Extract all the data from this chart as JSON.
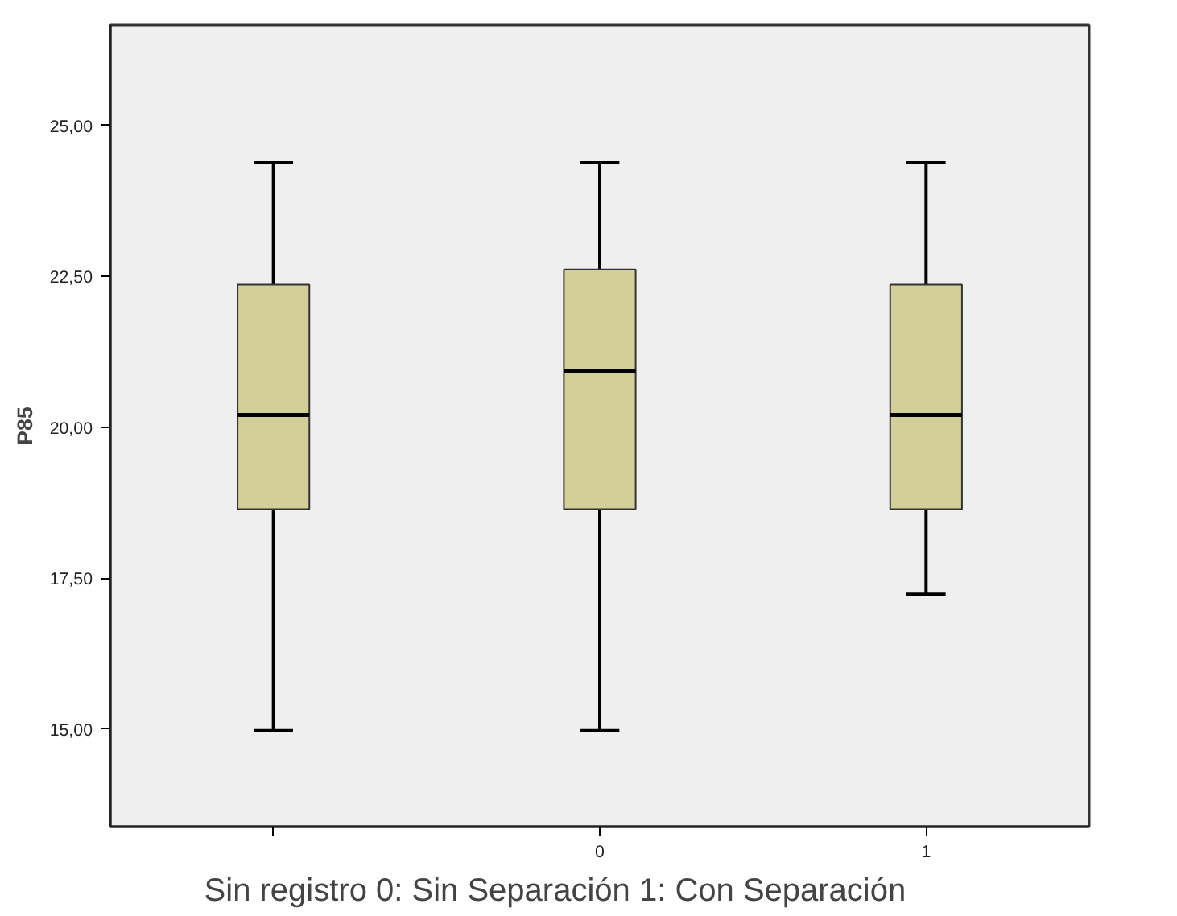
{
  "chart_data": {
    "type": "box",
    "ylabel": "P85",
    "categories": [
      null,
      "0",
      "1"
    ],
    "boxes": [
      {
        "low": 14.97,
        "q1": 18.64,
        "median": 20.2,
        "q3": 22.36,
        "high": 24.38
      },
      {
        "low": 14.97,
        "q1": 18.64,
        "median": 20.92,
        "q3": 22.61,
        "high": 24.38
      },
      {
        "low": 17.23,
        "q1": 18.64,
        "median": 20.2,
        "q3": 22.36,
        "high": 24.38
      }
    ],
    "color": "#d3cf98",
    "ylim": [
      13.38,
      26.66
    ],
    "yticks": [
      {
        "value": 15,
        "label": "15,00"
      },
      {
        "value": 17.5,
        "label": "17,50"
      },
      {
        "value": 20,
        "label": "20,00"
      },
      {
        "value": 22.5,
        "label": "22,50"
      },
      {
        "value": 25,
        "label": "25,00"
      }
    ],
    "grid": false,
    "annotations": [
      "Sin registro      0: Sin Separación      1: Con Separación"
    ]
  }
}
